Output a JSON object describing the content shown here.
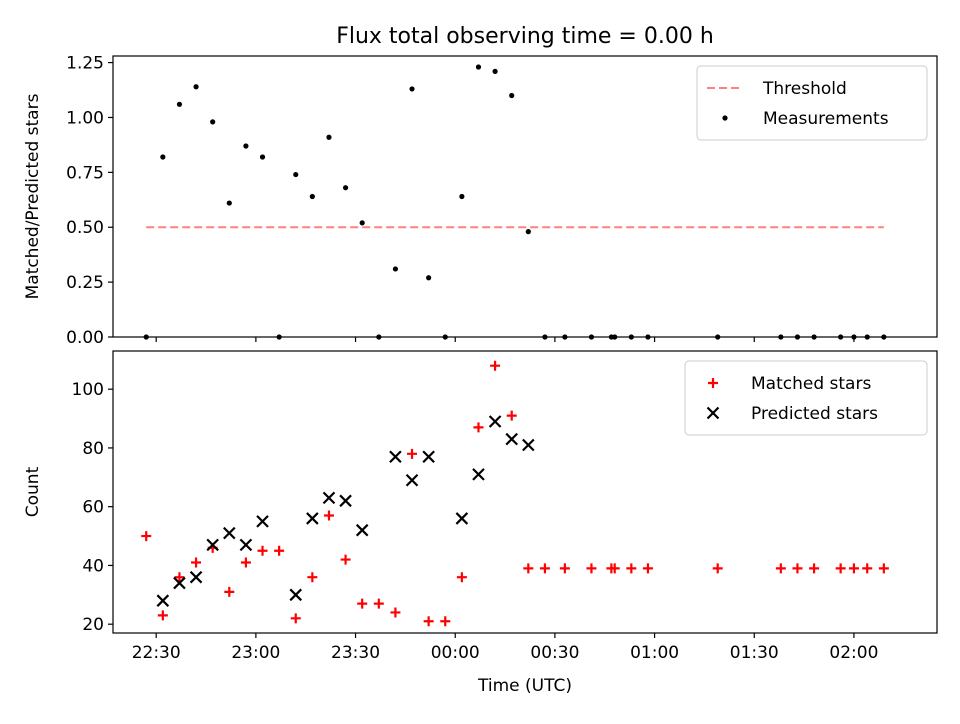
{
  "title": "Flux total observing time = 0.00 h",
  "chart_data": [
    {
      "type": "scatter",
      "ylabel": "Matched/Predicted stars",
      "xlim": [
        "22:17",
        "02:25"
      ],
      "ylim": [
        0,
        1.28
      ],
      "x_ticks": [
        "22:30",
        "23:00",
        "23:30",
        "00:00",
        "00:30",
        "01:00",
        "01:30",
        "02:00"
      ],
      "y_ticks": [
        "0.00",
        "0.25",
        "0.50",
        "0.75",
        "1.00",
        "1.25"
      ],
      "legend_position": "upper right",
      "threshold": {
        "name": "Threshold",
        "y": 0.5,
        "x_range": [
          "22:27",
          "02:09"
        ],
        "color": "#ff8080"
      },
      "series": [
        {
          "name": "Measurements",
          "color": "#000000",
          "points": [
            [
              "22:27",
              0.0
            ],
            [
              "22:32",
              0.82
            ],
            [
              "22:37",
              1.06
            ],
            [
              "22:42",
              1.14
            ],
            [
              "22:47",
              0.98
            ],
            [
              "22:52",
              0.61
            ],
            [
              "22:57",
              0.87
            ],
            [
              "23:02",
              0.82
            ],
            [
              "23:07",
              0.0
            ],
            [
              "23:12",
              0.74
            ],
            [
              "23:17",
              0.64
            ],
            [
              "23:22",
              0.91
            ],
            [
              "23:27",
              0.68
            ],
            [
              "23:32",
              0.52
            ],
            [
              "23:37",
              0.0
            ],
            [
              "23:42",
              0.31
            ],
            [
              "23:47",
              1.13
            ],
            [
              "23:52",
              0.27
            ],
            [
              "23:57",
              0.0
            ],
            [
              "00:02",
              0.64
            ],
            [
              "00:07",
              1.23
            ],
            [
              "00:12",
              1.21
            ],
            [
              "00:17",
              1.1
            ],
            [
              "00:22",
              0.48
            ],
            [
              "00:27",
              0.0
            ],
            [
              "00:33",
              0.0
            ],
            [
              "00:41",
              0.0
            ],
            [
              "00:47",
              0.0
            ],
            [
              "00:48",
              0.0
            ],
            [
              "00:53",
              0.0
            ],
            [
              "00:58",
              0.0
            ],
            [
              "01:19",
              0.0
            ],
            [
              "01:38",
              0.0
            ],
            [
              "01:43",
              0.0
            ],
            [
              "01:48",
              0.0
            ],
            [
              "01:56",
              0.0
            ],
            [
              "02:00",
              0.0
            ],
            [
              "02:04",
              0.0
            ],
            [
              "02:09",
              0.0
            ]
          ]
        }
      ]
    },
    {
      "type": "scatter",
      "xlabel": "Time (UTC)",
      "ylabel": "Count",
      "xlim": [
        "22:17",
        "02:25"
      ],
      "ylim": [
        17,
        113
      ],
      "x_ticks": [
        "22:30",
        "23:00",
        "23:30",
        "00:00",
        "00:30",
        "01:00",
        "01:30",
        "02:00"
      ],
      "y_ticks": [
        "20",
        "40",
        "60",
        "80",
        "100"
      ],
      "legend_position": "upper right",
      "series": [
        {
          "name": "Matched stars",
          "marker": "plus",
          "color": "#ff0000",
          "points": [
            [
              "22:27",
              50
            ],
            [
              "22:32",
              23
            ],
            [
              "22:37",
              36
            ],
            [
              "22:42",
              41
            ],
            [
              "22:47",
              46
            ],
            [
              "22:52",
              31
            ],
            [
              "22:57",
              41
            ],
            [
              "23:02",
              45
            ],
            [
              "23:07",
              45
            ],
            [
              "23:12",
              22
            ],
            [
              "23:17",
              36
            ],
            [
              "23:22",
              57
            ],
            [
              "23:27",
              42
            ],
            [
              "23:32",
              27
            ],
            [
              "23:37",
              27
            ],
            [
              "23:42",
              24
            ],
            [
              "23:47",
              78
            ],
            [
              "23:52",
              21
            ],
            [
              "23:57",
              21
            ],
            [
              "00:02",
              36
            ],
            [
              "00:07",
              87
            ],
            [
              "00:12",
              108
            ],
            [
              "00:17",
              91
            ],
            [
              "00:22",
              39
            ],
            [
              "00:27",
              39
            ],
            [
              "00:33",
              39
            ],
            [
              "00:41",
              39
            ],
            [
              "00:47",
              39
            ],
            [
              "00:48",
              39
            ],
            [
              "00:53",
              39
            ],
            [
              "00:58",
              39
            ],
            [
              "01:19",
              39
            ],
            [
              "01:38",
              39
            ],
            [
              "01:43",
              39
            ],
            [
              "01:48",
              39
            ],
            [
              "01:56",
              39
            ],
            [
              "02:00",
              39
            ],
            [
              "02:04",
              39
            ],
            [
              "02:09",
              39
            ]
          ]
        },
        {
          "name": "Predicted stars",
          "marker": "x",
          "color": "#000000",
          "points": [
            [
              "22:32",
              28
            ],
            [
              "22:37",
              34
            ],
            [
              "22:42",
              36
            ],
            [
              "22:47",
              47
            ],
            [
              "22:52",
              51
            ],
            [
              "22:57",
              47
            ],
            [
              "23:02",
              55
            ],
            [
              "23:12",
              30
            ],
            [
              "23:17",
              56
            ],
            [
              "23:22",
              63
            ],
            [
              "23:27",
              62
            ],
            [
              "23:32",
              52
            ],
            [
              "23:42",
              77
            ],
            [
              "23:47",
              69
            ],
            [
              "23:52",
              77
            ],
            [
              "00:02",
              56
            ],
            [
              "00:07",
              71
            ],
            [
              "00:12",
              89
            ],
            [
              "00:17",
              83
            ],
            [
              "00:22",
              81
            ]
          ]
        }
      ]
    }
  ]
}
